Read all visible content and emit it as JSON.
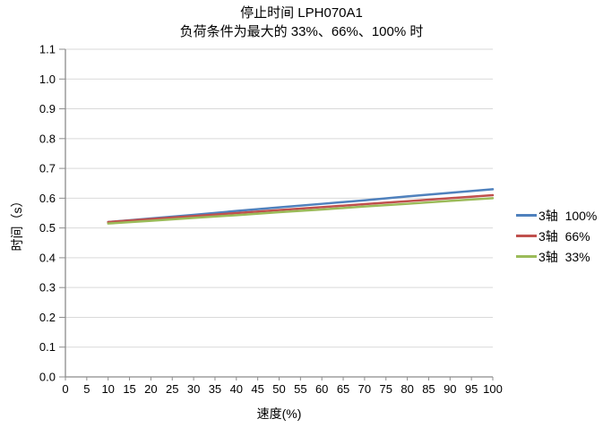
{
  "chart_data": {
    "type": "line",
    "title": "停止时间 LPH070A1",
    "subtitle": "负荷条件为最大的 33%、66%、100% 时",
    "xlabel": "速度(%)",
    "ylabel": "时间（s）",
    "xlim": [
      0,
      100
    ],
    "ylim": [
      0,
      1.1
    ],
    "x_tick_step": 5,
    "y_tick_step": 0.1,
    "grid": "horizontal-only",
    "legend_position": "right",
    "x": [
      10,
      20,
      30,
      40,
      50,
      60,
      70,
      80,
      90,
      100
    ],
    "series": [
      {
        "name": "3轴  100%",
        "color": "#4F81BD",
        "values": [
          0.52,
          0.532,
          0.544,
          0.557,
          0.569,
          0.581,
          0.593,
          0.606,
          0.618,
          0.63
        ]
      },
      {
        "name": "3轴  66%",
        "color": "#C0504D",
        "values": [
          0.52,
          0.53,
          0.54,
          0.55,
          0.56,
          0.57,
          0.58,
          0.59,
          0.6,
          0.61
        ]
      },
      {
        "name": "3轴  33%",
        "color": "#9BBB59",
        "values": [
          0.515,
          0.524,
          0.534,
          0.543,
          0.553,
          0.562,
          0.572,
          0.581,
          0.591,
          0.6
        ]
      }
    ],
    "colors": {
      "axis_line": "#8C8C8C",
      "gridline": "#D9D9D9",
      "text": "#000000",
      "background": "#FFFFFF"
    }
  }
}
